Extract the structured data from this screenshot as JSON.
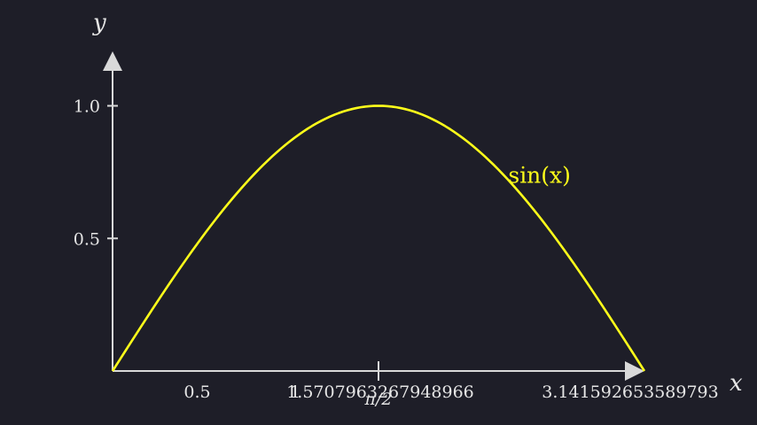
{
  "chart_data": {
    "type": "line",
    "title": "",
    "xlabel": "x",
    "ylabel": "y",
    "xlim": [
      0,
      3.14159265
    ],
    "ylim": [
      0,
      1.2
    ],
    "x_ticks": [
      {
        "value": 0.5,
        "label": "0.5"
      },
      {
        "value": 1,
        "label": "1"
      },
      {
        "value": 1.5707963267948966,
        "label": "1.5707963267948966"
      },
      {
        "value": 3.141592653589793,
        "label": "3.141592653589793"
      }
    ],
    "x_special_mark": {
      "value": 1.5707963267948966,
      "label": "π/2"
    },
    "y_ticks": [
      {
        "value": 0.5,
        "label": "0.5"
      },
      {
        "value": 1.0,
        "label": "1.0"
      }
    ],
    "series": [
      {
        "name": "sin(x)",
        "function": "sin",
        "x": [
          0,
          0.1571,
          0.3142,
          0.4712,
          0.6283,
          0.7854,
          0.9425,
          1.0996,
          1.2566,
          1.4137,
          1.5708,
          1.7279,
          1.885,
          2.042,
          2.1991,
          2.3562,
          2.5133,
          2.6704,
          2.8274,
          2.9845,
          3.1416
        ],
        "y": [
          0,
          0.1564,
          0.309,
          0.454,
          0.5878,
          0.7071,
          0.809,
          0.891,
          0.9511,
          0.9877,
          1.0,
          0.9877,
          0.9511,
          0.891,
          0.809,
          0.7071,
          0.5878,
          0.454,
          0.309,
          0.1564,
          0
        ],
        "label_at_x": 2.4
      }
    ],
    "grid": false,
    "colors": {
      "background": "#1e1e28",
      "axis": "#d9d9d9",
      "text": "#e6e6e6",
      "curve": "#ffff1a"
    }
  }
}
